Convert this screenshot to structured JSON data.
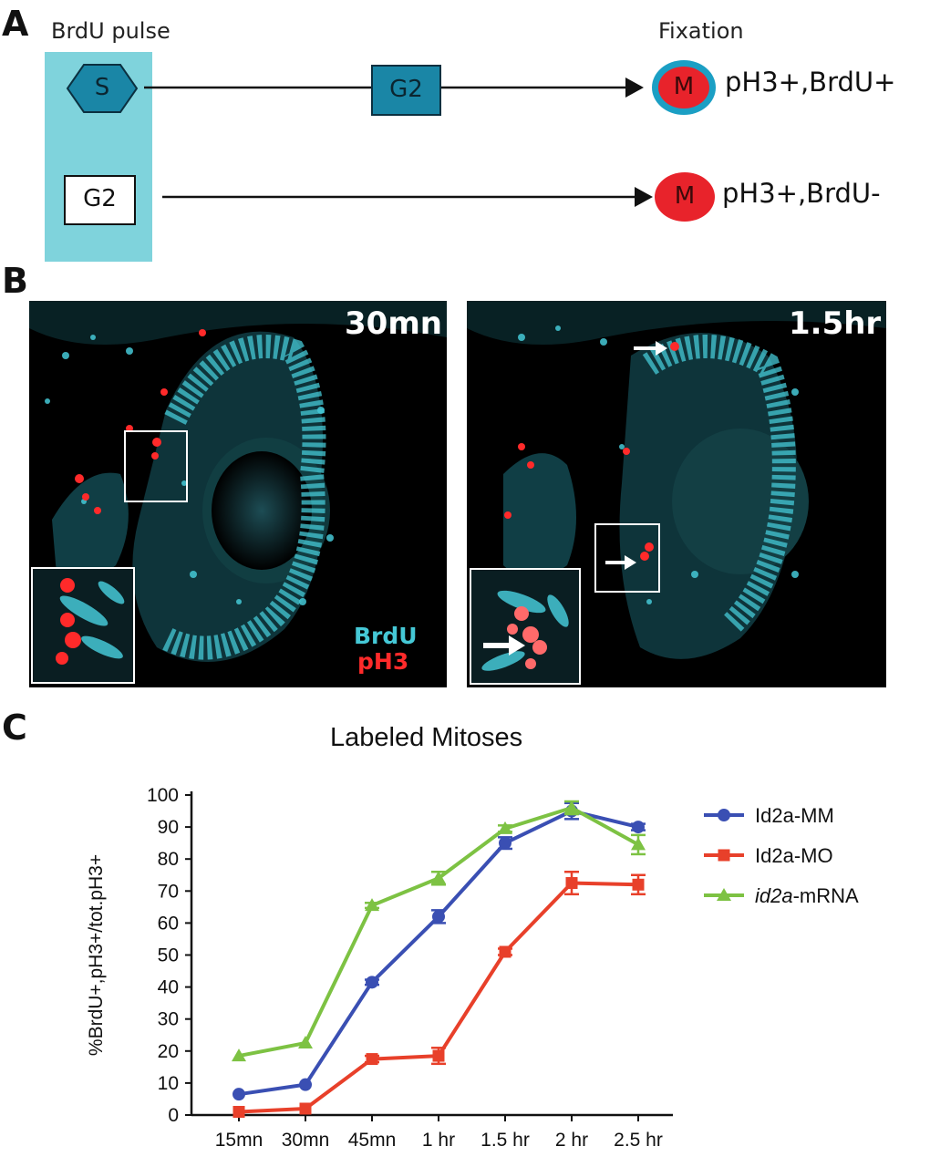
{
  "panel_a": {
    "letter": "A",
    "pulse_label": "BrdU pulse",
    "fixation_label": "Fixation",
    "row1": {
      "start_stage": "S",
      "middle_stage": "G2",
      "end_stage": "M",
      "result": "pH3+,BrdU+"
    },
    "row2": {
      "start_stage": "G2",
      "end_stage": "M",
      "result": "pH3+,BrdU-"
    },
    "colors": {
      "pulse_box": "#7fd3dc",
      "stage_fill": "#1a86a6",
      "mitosis_fill": "#e8232b",
      "brdu_ring": "#1b9fc4"
    }
  },
  "panel_b": {
    "letter": "B",
    "images": [
      {
        "time_label": "30mn",
        "legend_brdu": "BrdU",
        "legend_ph3": "pH3"
      },
      {
        "time_label": "1.5hr"
      }
    ],
    "colors": {
      "brdu": "#45c8d6",
      "ph3": "#ff2a2a",
      "background": "#000000"
    }
  },
  "panel_c": {
    "letter": "C",
    "chart_data": {
      "type": "line",
      "title": "Labeled Mitoses",
      "xlabel": "",
      "ylabel": "%BrdU+,pH3+/tot.pH3+",
      "categories": [
        "15mn",
        "30mn",
        "45mn",
        "1 hr",
        "1.5 hr",
        "2 hr",
        "2.5 hr"
      ],
      "ylim": [
        0,
        100
      ],
      "yticks": [
        0,
        10,
        20,
        30,
        40,
        50,
        60,
        70,
        80,
        90,
        100
      ],
      "legend_position": "right",
      "series": [
        {
          "name": "Id2a-MM",
          "color": "#3a4fb3",
          "marker": "circle",
          "values": [
            6.5,
            9.5,
            41.5,
            62,
            85,
            95,
            90
          ],
          "errors": [
            0.5,
            0.5,
            0.8,
            2,
            1.8,
            2.5,
            1
          ]
        },
        {
          "name": "Id2a-MO",
          "color": "#e8402a",
          "marker": "square",
          "values": [
            1,
            2,
            17.5,
            18.5,
            51,
            72.5,
            72
          ],
          "errors": [
            0.5,
            0.5,
            1,
            2.5,
            1,
            3.5,
            3
          ]
        },
        {
          "name_italic": "id2a",
          "name_suffix": "-mRNA",
          "color": "#7dc243",
          "marker": "triangle",
          "values": [
            18.5,
            22.5,
            65.5,
            74,
            89.5,
            96,
            84.5
          ],
          "errors": [
            0.5,
            0.5,
            0.8,
            2,
            1,
            2,
            3
          ]
        }
      ]
    }
  }
}
